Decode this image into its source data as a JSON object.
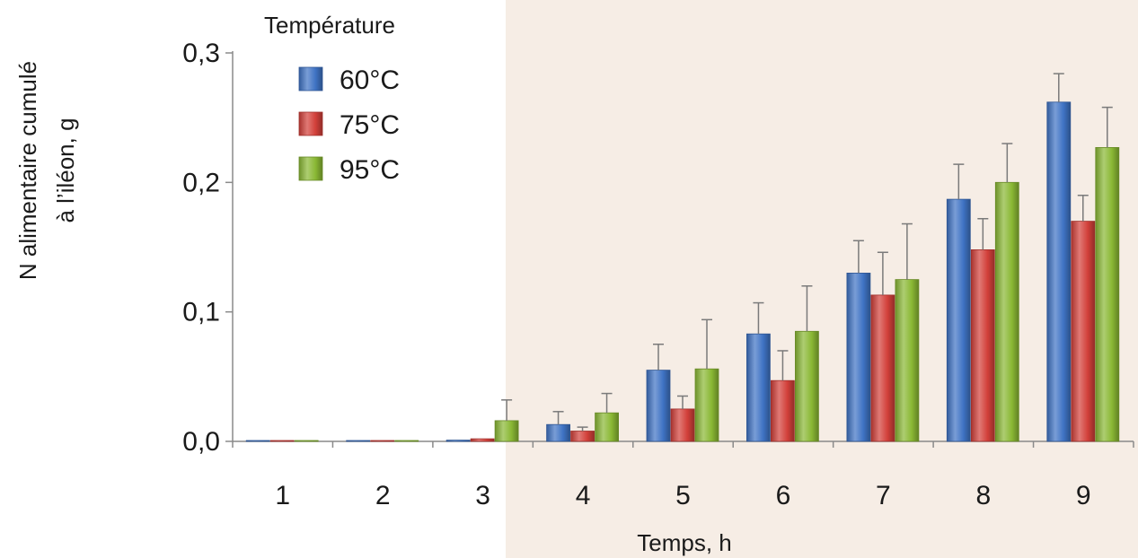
{
  "chart_data": {
    "type": "bar",
    "title": "",
    "xlabel": "Temps, h",
    "ylabel_line1": "N alimentaire cumulé",
    "ylabel_line2": "à l’iléon, g",
    "categories": [
      "1",
      "2",
      "3",
      "4",
      "5",
      "6",
      "7",
      "8",
      "9"
    ],
    "yticks": [
      "0,0",
      "0,1",
      "0,2",
      "0,3"
    ],
    "ylim": [
      0,
      0.3
    ],
    "grid": false,
    "legend": {
      "title": "Température",
      "placement": "top-left"
    },
    "shaded_region": {
      "from_category": "4",
      "to_category": "9",
      "color": "#f6ede5"
    },
    "series": [
      {
        "name": "60°C",
        "color": "#3f73c4",
        "values": [
          0.0,
          0.0,
          0.001,
          0.013,
          0.055,
          0.083,
          0.13,
          0.187,
          0.262
        ],
        "errors": [
          0.0,
          0.0,
          0.0,
          0.01,
          0.02,
          0.024,
          0.025,
          0.027,
          0.022
        ]
      },
      {
        "name": "75°C",
        "color": "#d2403a",
        "values": [
          0.0,
          0.0,
          0.002,
          0.008,
          0.025,
          0.047,
          0.113,
          0.148,
          0.17
        ],
        "errors": [
          0.0,
          0.0,
          0.0,
          0.003,
          0.01,
          0.023,
          0.033,
          0.024,
          0.02
        ]
      },
      {
        "name": "95°C",
        "color": "#8ab834",
        "values": [
          0.0,
          0.0,
          0.016,
          0.022,
          0.056,
          0.085,
          0.125,
          0.2,
          0.227
        ],
        "errors": [
          0.0,
          0.0,
          0.016,
          0.015,
          0.038,
          0.035,
          0.043,
          0.03,
          0.031
        ]
      }
    ]
  }
}
